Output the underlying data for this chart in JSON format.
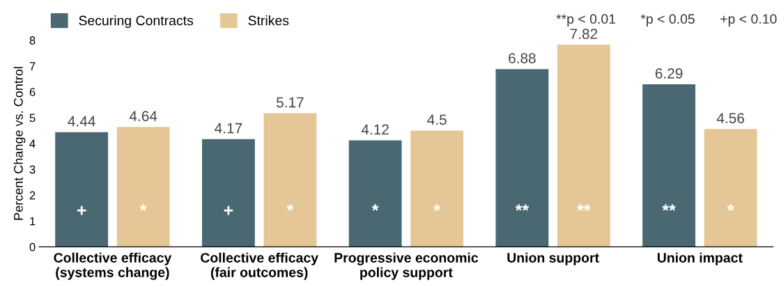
{
  "chart_data": {
    "type": "bar",
    "ylabel": "Percent Change vs. Control",
    "categories": [
      "Collective efficacy\n(systems change)",
      "Collective efficacy\n(fair outcomes)",
      "Progressive economic\npolicy support",
      "Union support",
      "Union impact"
    ],
    "series": [
      {
        "name": "Securing Contracts",
        "color": "#4a6871",
        "values": [
          4.44,
          4.17,
          4.12,
          6.88,
          6.29
        ]
      },
      {
        "name": "Strikes",
        "color": "#e5c797",
        "values": [
          4.64,
          5.17,
          4.5,
          7.82,
          4.56
        ]
      }
    ],
    "ylim": [
      0,
      8
    ],
    "yticks": [
      0,
      1,
      2,
      3,
      4,
      5,
      6,
      7,
      8
    ],
    "data_labels": true,
    "grid": false,
    "legend": "top left",
    "annotations": [
      "**p < 0.01",
      "*p < 0.05",
      "+p < 0.10",
      "+",
      "*",
      "+",
      "*",
      "*",
      "*",
      "**",
      "**",
      "**",
      "*"
    ]
  }
}
